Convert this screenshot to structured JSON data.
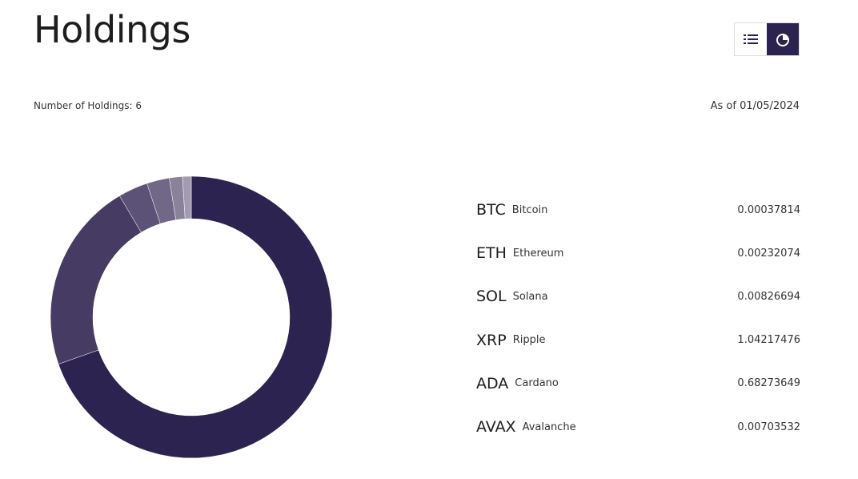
{
  "header": {
    "title": "Holdings",
    "count": "Number of Holdings: 6",
    "as_of": "As of 01/05/2024"
  },
  "chart_data": {
    "type": "pie",
    "values": [
      69.6,
      21.9,
      3.4,
      2.6,
      1.5,
      1.0
    ],
    "colors": [
      "#2d2350",
      "#463b63",
      "#5c5176",
      "#716888",
      "#8a829b",
      "#a39cb1"
    ]
  },
  "holdings": [
    {
      "symbol": "BTC",
      "name": "Bitcoin",
      "amount": "0.00037814"
    },
    {
      "symbol": "ETH",
      "name": "Ethereum",
      "amount": "0.00232074"
    },
    {
      "symbol": "SOL",
      "name": "Solana",
      "amount": "0.00826694"
    },
    {
      "symbol": "XRP",
      "name": "Ripple",
      "amount": "1.04217476"
    },
    {
      "symbol": "ADA",
      "name": "Cardano",
      "amount": "0.68273649"
    },
    {
      "symbol": "AVAX",
      "name": "Avalanche",
      "amount": "0.00703532"
    }
  ]
}
